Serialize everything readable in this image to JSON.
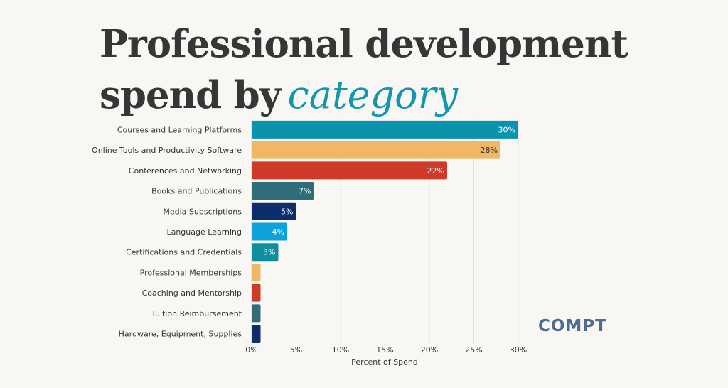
{
  "header": {
    "title_line1": "Professional development",
    "title_line2": "spend by",
    "title_accent": "category"
  },
  "logo": {
    "text": "COMPT"
  },
  "chart_data": {
    "type": "bar",
    "orientation": "horizontal",
    "categories": [
      "Courses and Learning Platforms",
      "Online Tools and Productivity Software",
      "Conferences and Networking",
      "Books and Publications",
      "Media Subscriptions",
      "Language Learning",
      "Certifications and Credentials",
      "Professional Memberships",
      "Coaching and Mentorship",
      "Tuition Reimbursement",
      "Hardware, Equipment, Supplies"
    ],
    "values": [
      30,
      28,
      22,
      7,
      5,
      4,
      3,
      1,
      1,
      1,
      1
    ],
    "data_labels": [
      "30%",
      "28%",
      "22%",
      "7%",
      "5%",
      "4%",
      "3%",
      "",
      "",
      "",
      ""
    ],
    "colors": [
      "#0993ad",
      "#f0b765",
      "#cf3b28",
      "#2f6e79",
      "#0e2d6c",
      "#0da2dc",
      "#0f8e9e",
      "#f0b765",
      "#cf3b28",
      "#2f6e79",
      "#0e2d6c"
    ],
    "label_colors": [
      "#ffffff",
      "#333333",
      "#ffffff",
      "#ffffff",
      "#ffffff",
      "#ffffff",
      "#ffffff",
      "#ffffff",
      "#ffffff",
      "#ffffff",
      "#ffffff"
    ],
    "xlabel": "Percent of Spend",
    "ylabel": "",
    "xlim": [
      0,
      30
    ],
    "xticks": [
      0,
      5,
      10,
      15,
      20,
      25,
      30
    ],
    "xtick_labels": [
      "0%",
      "5%",
      "10%",
      "15%",
      "20%",
      "25%",
      "30%"
    ],
    "grid": true
  }
}
